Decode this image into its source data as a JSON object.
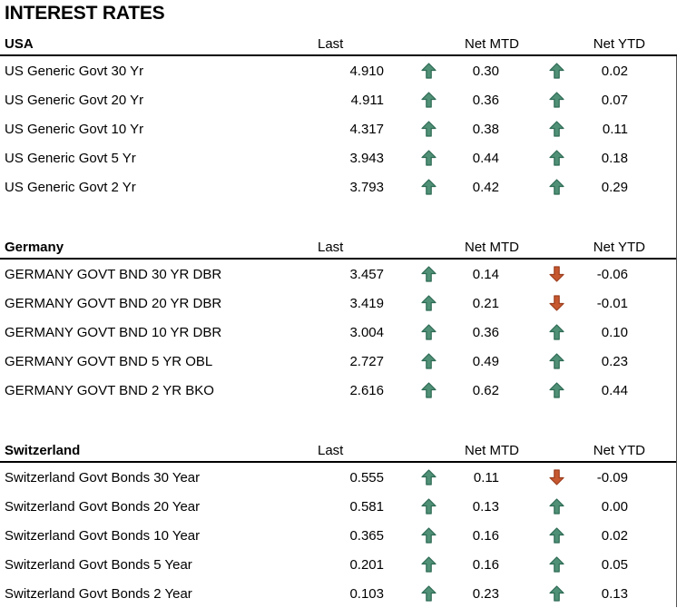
{
  "page_title": "INTEREST RATES",
  "chart_data": {
    "type": "table",
    "title": "INTEREST RATES",
    "column_headers": [
      "Last",
      "Net MTD",
      "Net YTD"
    ],
    "sections": [
      {
        "region": "USA",
        "rows": [
          {
            "name": "US Generic Govt 30 Yr",
            "last": "4.910",
            "net_mtd": "0.30",
            "net_mtd_direction": "up",
            "net_ytd": "0.02",
            "net_ytd_direction": "up"
          },
          {
            "name": "US Generic Govt 20 Yr",
            "last": "4.911",
            "net_mtd": "0.36",
            "net_mtd_direction": "up",
            "net_ytd": "0.07",
            "net_ytd_direction": "up"
          },
          {
            "name": "US Generic Govt 10 Yr",
            "last": "4.317",
            "net_mtd": "0.38",
            "net_mtd_direction": "up",
            "net_ytd": "0.11",
            "net_ytd_direction": "up"
          },
          {
            "name": "US Generic Govt 5 Yr",
            "last": "3.943",
            "net_mtd": "0.44",
            "net_mtd_direction": "up",
            "net_ytd": "0.18",
            "net_ytd_direction": "up"
          },
          {
            "name": "US Generic Govt 2 Yr",
            "last": "3.793",
            "net_mtd": "0.42",
            "net_mtd_direction": "up",
            "net_ytd": "0.29",
            "net_ytd_direction": "up"
          }
        ]
      },
      {
        "region": "Germany",
        "rows": [
          {
            "name": "GERMANY GOVT BND 30 YR DBR",
            "last": "3.457",
            "net_mtd": "0.14",
            "net_mtd_direction": "up",
            "net_ytd": "-0.06",
            "net_ytd_direction": "down"
          },
          {
            "name": "GERMANY GOVT BND 20 YR DBR",
            "last": "3.419",
            "net_mtd": "0.21",
            "net_mtd_direction": "up",
            "net_ytd": "-0.01",
            "net_ytd_direction": "down"
          },
          {
            "name": "GERMANY GOVT BND 10 YR DBR",
            "last": "3.004",
            "net_mtd": "0.36",
            "net_mtd_direction": "up",
            "net_ytd": "0.10",
            "net_ytd_direction": "up"
          },
          {
            "name": "GERMANY GOVT BND 5 YR OBL",
            "last": "2.727",
            "net_mtd": "0.49",
            "net_mtd_direction": "up",
            "net_ytd": "0.23",
            "net_ytd_direction": "up"
          },
          {
            "name": "GERMANY GOVT BND 2 YR BKO",
            "last": "2.616",
            "net_mtd": "0.62",
            "net_mtd_direction": "up",
            "net_ytd": "0.44",
            "net_ytd_direction": "up"
          }
        ]
      },
      {
        "region": "Switzerland",
        "rows": [
          {
            "name": "Switzerland Govt Bonds 30 Year",
            "last": "0.555",
            "net_mtd": "0.11",
            "net_mtd_direction": "up",
            "net_ytd": "-0.09",
            "net_ytd_direction": "down"
          },
          {
            "name": "Switzerland Govt Bonds 20 Year",
            "last": "0.581",
            "net_mtd": "0.13",
            "net_mtd_direction": "up",
            "net_ytd": "0.00",
            "net_ytd_direction": "up"
          },
          {
            "name": "Switzerland Govt Bonds 10 Year",
            "last": "0.365",
            "net_mtd": "0.16",
            "net_mtd_direction": "up",
            "net_ytd": "0.02",
            "net_ytd_direction": "up"
          },
          {
            "name": "Switzerland Govt Bonds 5 Year",
            "last": "0.201",
            "net_mtd": "0.16",
            "net_mtd_direction": "up",
            "net_ytd": "0.05",
            "net_ytd_direction": "up"
          },
          {
            "name": "Switzerland Govt Bonds 2 Year",
            "last": "0.103",
            "net_mtd": "0.23",
            "net_mtd_direction": "up",
            "net_ytd": "0.13",
            "net_ytd_direction": "up"
          }
        ]
      }
    ]
  },
  "colors": {
    "up_arrow_fill": "#4F9077",
    "up_arrow_outline": "#2E6B54",
    "down_arrow_fill": "#C6572F",
    "down_arrow_outline": "#9C3F1F",
    "text": "#000000",
    "header_rule": "#000000",
    "background": "#FFFFFF"
  }
}
